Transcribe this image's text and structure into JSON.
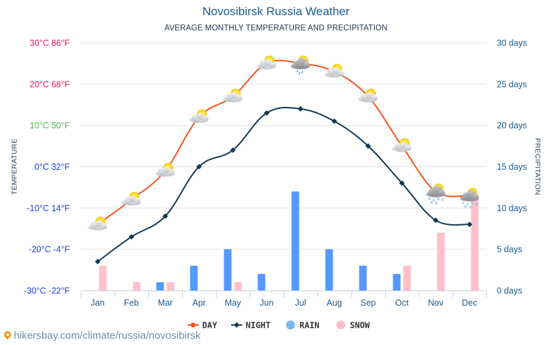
{
  "page": {
    "title": "Novosibirsk Russia Weather",
    "subtitle": "AVERAGE MONTHLY TEMPERATURE AND PRECIPITATION",
    "footer_link": "hikersbay.com/climate/russia/novosibirsk"
  },
  "chart_data": {
    "type": "line+bar",
    "title": "Novosibirsk Russia Weather",
    "subtitle": "AVERAGE MONTHLY TEMPERATURE AND PRECIPITATION",
    "categories": [
      "Jan",
      "Feb",
      "Mar",
      "Apr",
      "May",
      "Jun",
      "Jul",
      "Aug",
      "Sep",
      "Oct",
      "Nov",
      "Dec"
    ],
    "left_axis": {
      "label": "TEMPERATURE",
      "unit": "°C",
      "range": [
        -30,
        30
      ],
      "ticks": [
        {
          "value": 30,
          "label": "30°C 86°F",
          "color": "#e8175d"
        },
        {
          "value": 20,
          "label": "20°C 68°F",
          "color": "#e8175d"
        },
        {
          "value": 10,
          "label": "10°C 50°F",
          "color": "#4cb848"
        },
        {
          "value": 0,
          "label": "0°C 32°F",
          "color": "#1a3ee0"
        },
        {
          "value": -10,
          "label": "-10°C 14°F",
          "color": "#1a3ee0"
        },
        {
          "value": -20,
          "label": "-20°C -4°F",
          "color": "#1a3ee0"
        },
        {
          "value": -30,
          "label": "-30°C -22°F",
          "color": "#1a3ee0"
        }
      ]
    },
    "right_axis": {
      "label": "PRECIPITATION",
      "unit": "days",
      "range": [
        0,
        30
      ],
      "ticks": [
        {
          "value": 30,
          "label": "30 days"
        },
        {
          "value": 25,
          "label": "25 days"
        },
        {
          "value": 20,
          "label": "20 days"
        },
        {
          "value": 15,
          "label": "15 days"
        },
        {
          "value": 10,
          "label": "10 days"
        },
        {
          "value": 5,
          "label": "5 days"
        },
        {
          "value": 0,
          "label": "0 days"
        }
      ]
    },
    "grid": true,
    "legend_position": "bottom-center",
    "series": [
      {
        "name": "DAY",
        "type": "line",
        "axis": "left",
        "color": "#f4511e",
        "values": [
          -14,
          -8,
          -1,
          12,
          17,
          25,
          25,
          23,
          17,
          5,
          -6,
          -7
        ],
        "icons": [
          "partly-cloudy",
          "partly-cloudy",
          "partly-cloudy",
          "partly-cloudy",
          "partly-cloudy",
          "partly-cloudy",
          "cloudy-rain",
          "partly-cloudy",
          "partly-cloudy",
          "partly-cloudy",
          "cloudy-snow",
          "cloudy-snow"
        ]
      },
      {
        "name": "NIGHT",
        "type": "line",
        "axis": "left",
        "color": "#0d3b54",
        "values": [
          -23,
          -17,
          -12,
          0,
          4,
          13,
          14,
          11,
          5,
          -4,
          -13,
          -14
        ]
      },
      {
        "name": "RAIN",
        "type": "bar",
        "axis": "right",
        "color": "#5599ff",
        "values": [
          0,
          0,
          1,
          3,
          5,
          2,
          12,
          5,
          3,
          2,
          0,
          0
        ]
      },
      {
        "name": "SNOW",
        "type": "bar",
        "axis": "right",
        "color": "#ffc0cb",
        "values": [
          3,
          1,
          1,
          0,
          1,
          0,
          0,
          0,
          0,
          3,
          7,
          11
        ]
      }
    ],
    "legend": [
      {
        "name": "DAY",
        "color": "#f4511e",
        "marker": "line-dot"
      },
      {
        "name": "NIGHT",
        "color": "#0d3b54",
        "marker": "line-diamond"
      },
      {
        "name": "RAIN",
        "color": "#7db6ec",
        "marker": "circle"
      },
      {
        "name": "SNOW",
        "color": "#ffc0cb",
        "marker": "circle"
      }
    ]
  }
}
